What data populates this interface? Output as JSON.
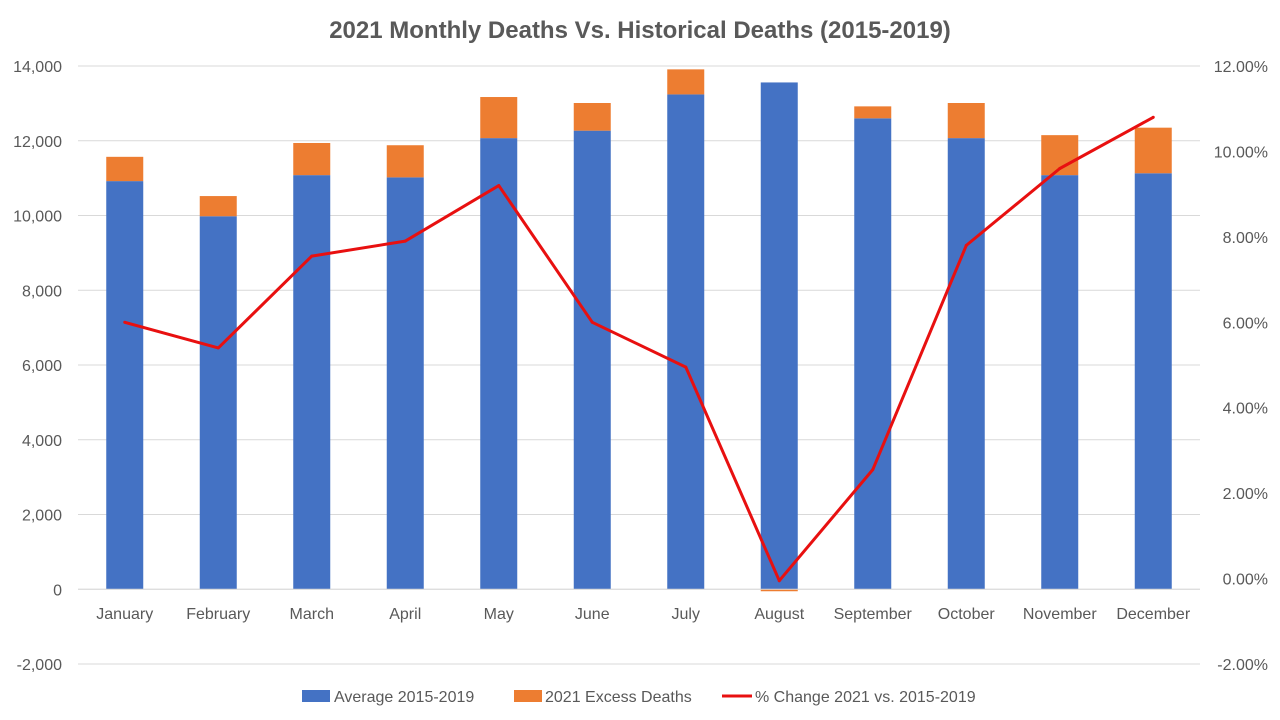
{
  "chart_data": {
    "type": "bar",
    "title": "2021 Monthly Deaths Vs. Historical Deaths (2015-2019)",
    "categories": [
      "January",
      "February",
      "March",
      "April",
      "May",
      "June",
      "July",
      "August",
      "September",
      "October",
      "November",
      "December"
    ],
    "stacked": true,
    "series": [
      {
        "name": "Average 2015-2019",
        "type": "bar",
        "axis": "left",
        "color": "#4472c4",
        "values": [
          10920,
          9980,
          11080,
          11020,
          12070,
          12270,
          13240,
          13560,
          12600,
          12070,
          11080,
          11130
        ]
      },
      {
        "name": "2021 Excess Deaths",
        "type": "bar",
        "axis": "left",
        "color": "#ed7d31",
        "values": [
          650,
          540,
          860,
          860,
          1100,
          740,
          670,
          -20,
          320,
          940,
          1070,
          1220
        ]
      },
      {
        "name": "% Change 2021 vs. 2015-2019",
        "type": "line",
        "axis": "right",
        "color": "#e81010",
        "values": [
          6.0,
          5.4,
          7.55,
          7.9,
          9.2,
          6.0,
          4.95,
          -0.05,
          2.55,
          7.8,
          9.6,
          10.8
        ]
      }
    ],
    "yaxis_left": {
      "min": -2000,
      "max": 14000,
      "step": 2000,
      "tick_labels": [
        "-2,000",
        "0",
        "2,000",
        "4,000",
        "6,000",
        "8,000",
        "10,000",
        "12,000",
        "14,000"
      ]
    },
    "yaxis_right": {
      "min": -2,
      "max": 12,
      "step": 2,
      "tick_labels": [
        "-2.00%",
        "0.00%",
        "2.00%",
        "4.00%",
        "6.00%",
        "8.00%",
        "10.00%",
        "12.00%"
      ]
    },
    "grid": true,
    "legend": "bottom"
  }
}
